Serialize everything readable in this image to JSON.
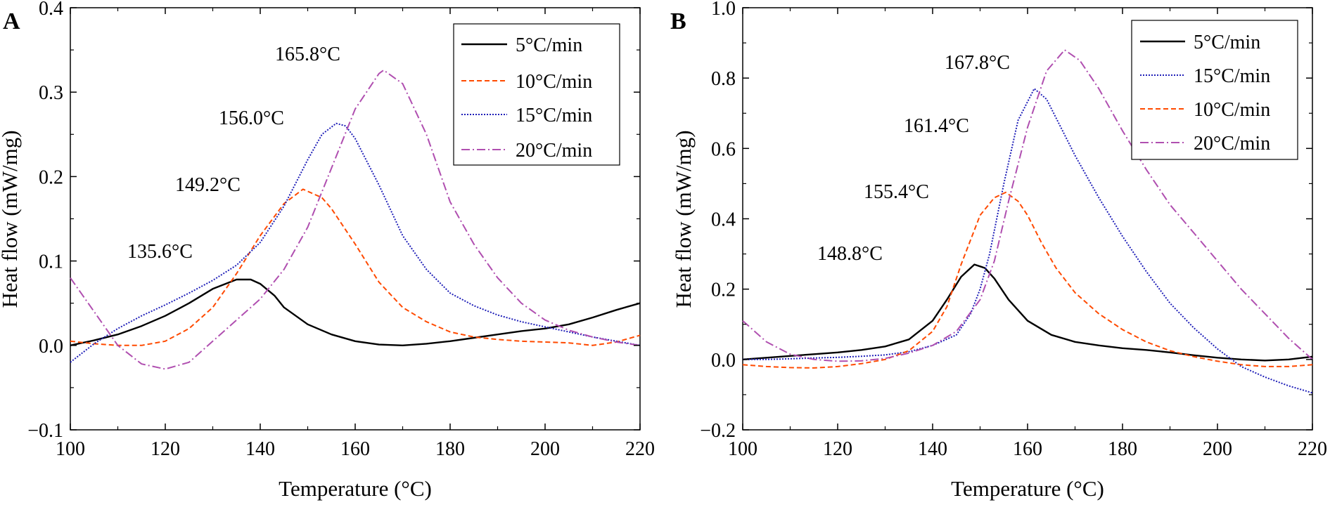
{
  "chart_data": [
    {
      "type": "line",
      "panel": "A",
      "xlabel": "Temperature (°C)",
      "ylabel": "Heat flow (mW/mg)",
      "xlim": [
        100,
        220
      ],
      "ylim": [
        -0.1,
        0.4
      ],
      "xticks": [
        100,
        120,
        140,
        160,
        180,
        200,
        220
      ],
      "xtick_labels": [
        "100",
        "120",
        "140",
        "160",
        "180",
        "200",
        "220"
      ],
      "yticks": [
        -0.1,
        0.0,
        0.1,
        0.2,
        0.3,
        0.4
      ],
      "ytick_labels": [
        "−0.1",
        "0.0",
        "0.1",
        "0.2",
        "0.3",
        "0.4"
      ],
      "legend_position": "top-right",
      "series": [
        {
          "name": "5°C/min",
          "color": "#000000",
          "dash": "solid",
          "peak": 135.6,
          "x": [
            100,
            105,
            110,
            115,
            120,
            125,
            130,
            135,
            138,
            140,
            143,
            145,
            150,
            155,
            160,
            165,
            170,
            175,
            180,
            185,
            190,
            195,
            200,
            205,
            210,
            215,
            220
          ],
          "y": [
            0.0,
            0.006,
            0.013,
            0.023,
            0.035,
            0.05,
            0.067,
            0.078,
            0.078,
            0.073,
            0.059,
            0.045,
            0.025,
            0.013,
            0.005,
            0.001,
            0.0,
            0.002,
            0.005,
            0.009,
            0.013,
            0.017,
            0.02,
            0.025,
            0.033,
            0.042,
            0.05
          ]
        },
        {
          "name": "10°C/min",
          "color": "#ff4a00",
          "dash": "dashed",
          "peak": 149.2,
          "x": [
            100,
            105,
            110,
            115,
            120,
            125,
            130,
            135,
            140,
            145,
            149,
            153,
            155,
            160,
            165,
            170,
            175,
            180,
            185,
            190,
            195,
            200,
            205,
            210,
            215,
            220
          ],
          "y": [
            0.005,
            0.002,
            0.0,
            0.0,
            0.005,
            0.02,
            0.045,
            0.085,
            0.13,
            0.168,
            0.185,
            0.175,
            0.162,
            0.12,
            0.075,
            0.045,
            0.028,
            0.016,
            0.01,
            0.007,
            0.005,
            0.004,
            0.003,
            0.0,
            0.004,
            0.012
          ]
        },
        {
          "name": "15°C/min",
          "color": "#1f1fb8",
          "dash": "dotted",
          "peak": 156.0,
          "x": [
            100,
            105,
            110,
            115,
            120,
            125,
            130,
            135,
            140,
            145,
            150,
            153,
            156,
            158,
            160,
            165,
            170,
            175,
            180,
            185,
            190,
            195,
            200,
            205,
            210,
            215,
            220
          ],
          "y": [
            -0.02,
            0.002,
            0.02,
            0.035,
            0.048,
            0.062,
            0.077,
            0.095,
            0.122,
            0.165,
            0.22,
            0.25,
            0.263,
            0.26,
            0.245,
            0.19,
            0.13,
            0.09,
            0.062,
            0.047,
            0.036,
            0.028,
            0.022,
            0.016,
            0.01,
            0.005,
            0.0
          ]
        },
        {
          "name": "20°C/min",
          "color": "#b04fb0",
          "dash": "dashdot",
          "peak": 165.8,
          "x": [
            100,
            105,
            110,
            115,
            120,
            125,
            130,
            135,
            140,
            145,
            150,
            155,
            160,
            165,
            166,
            170,
            175,
            180,
            185,
            190,
            195,
            200,
            205,
            210,
            215,
            220
          ],
          "y": [
            0.08,
            0.04,
            0.0,
            -0.022,
            -0.028,
            -0.02,
            0.005,
            0.03,
            0.055,
            0.09,
            0.14,
            0.21,
            0.28,
            0.322,
            0.326,
            0.31,
            0.25,
            0.17,
            0.12,
            0.08,
            0.05,
            0.03,
            0.018,
            0.01,
            0.004,
            0.0
          ]
        }
      ],
      "peak_labels": [
        "135.6°C",
        "149.2°C",
        "156.0°C",
        "165.8°C"
      ]
    },
    {
      "type": "line",
      "panel": "B",
      "xlabel": "Temperature (°C)",
      "ylabel": "Heat flow (mW/mg)",
      "xlim": [
        100,
        220
      ],
      "ylim": [
        -0.2,
        1.0
      ],
      "xticks": [
        100,
        120,
        140,
        160,
        180,
        200,
        220
      ],
      "xtick_labels": [
        "100",
        "120",
        "140",
        "160",
        "180",
        "200",
        "220"
      ],
      "yticks": [
        -0.2,
        0.0,
        0.2,
        0.4,
        0.6,
        0.8,
        1.0
      ],
      "ytick_labels": [
        "−0.2",
        "0.0",
        "0.2",
        "0.4",
        "0.6",
        "0.8",
        "1.0"
      ],
      "legend_position": "top-right",
      "series": [
        {
          "name": "5°C/min",
          "color": "#000000",
          "dash": "solid",
          "peak": 148.8,
          "x": [
            100,
            105,
            110,
            115,
            120,
            125,
            130,
            135,
            140,
            143,
            146,
            148.8,
            151,
            153,
            156,
            160,
            165,
            170,
            175,
            180,
            185,
            190,
            195,
            200,
            205,
            210,
            215,
            220
          ],
          "y": [
            0.0,
            0.005,
            0.01,
            0.015,
            0.02,
            0.027,
            0.037,
            0.057,
            0.11,
            0.17,
            0.235,
            0.27,
            0.26,
            0.23,
            0.17,
            0.11,
            0.07,
            0.05,
            0.04,
            0.032,
            0.027,
            0.02,
            0.012,
            0.005,
            0.0,
            -0.003,
            0.0,
            0.008
          ]
        },
        {
          "name": "15°C/min",
          "color": "#1f1fb8",
          "dash": "dotted",
          "peak": 161.4,
          "x": [
            100,
            105,
            110,
            115,
            120,
            125,
            130,
            135,
            140,
            145,
            148,
            150,
            152,
            155,
            158,
            161.4,
            164,
            167,
            170,
            175,
            180,
            185,
            190,
            195,
            200,
            205,
            210,
            215,
            220
          ],
          "y": [
            0.0,
            0.0,
            0.002,
            0.004,
            0.006,
            0.009,
            0.013,
            0.022,
            0.04,
            0.07,
            0.13,
            0.2,
            0.3,
            0.5,
            0.68,
            0.77,
            0.74,
            0.66,
            0.58,
            0.46,
            0.35,
            0.25,
            0.16,
            0.09,
            0.03,
            -0.02,
            -0.05,
            -0.075,
            -0.095
          ]
        },
        {
          "name": "10°C/min",
          "color": "#ff4a00",
          "dash": "dashed",
          "peak": 155.4,
          "x": [
            100,
            105,
            110,
            115,
            120,
            125,
            130,
            135,
            140,
            143,
            146,
            150,
            153,
            155.4,
            158,
            160,
            163,
            166,
            170,
            175,
            180,
            185,
            190,
            195,
            200,
            205,
            210,
            215,
            220
          ],
          "y": [
            -0.015,
            -0.02,
            -0.023,
            -0.024,
            -0.02,
            -0.012,
            0.0,
            0.025,
            0.08,
            0.15,
            0.27,
            0.41,
            0.46,
            0.475,
            0.45,
            0.41,
            0.33,
            0.26,
            0.19,
            0.13,
            0.085,
            0.05,
            0.025,
            0.008,
            -0.005,
            -0.015,
            -0.02,
            -0.02,
            -0.015
          ]
        },
        {
          "name": "20°C/min",
          "color": "#b04fb0",
          "dash": "dashdot",
          "peak": 167.8,
          "x": [
            100,
            105,
            110,
            115,
            120,
            125,
            130,
            135,
            140,
            145,
            150,
            153,
            156,
            160,
            164,
            167.8,
            171,
            175,
            180,
            185,
            190,
            195,
            200,
            205,
            210,
            215,
            220
          ],
          "y": [
            0.11,
            0.05,
            0.015,
            0.0,
            -0.005,
            -0.004,
            0.003,
            0.018,
            0.04,
            0.08,
            0.17,
            0.28,
            0.45,
            0.66,
            0.82,
            0.88,
            0.85,
            0.77,
            0.65,
            0.54,
            0.44,
            0.36,
            0.28,
            0.2,
            0.13,
            0.06,
            0.0
          ]
        }
      ],
      "peak_labels": [
        "148.8°C",
        "155.4°C",
        "161.4°C",
        "167.8°C"
      ]
    }
  ]
}
